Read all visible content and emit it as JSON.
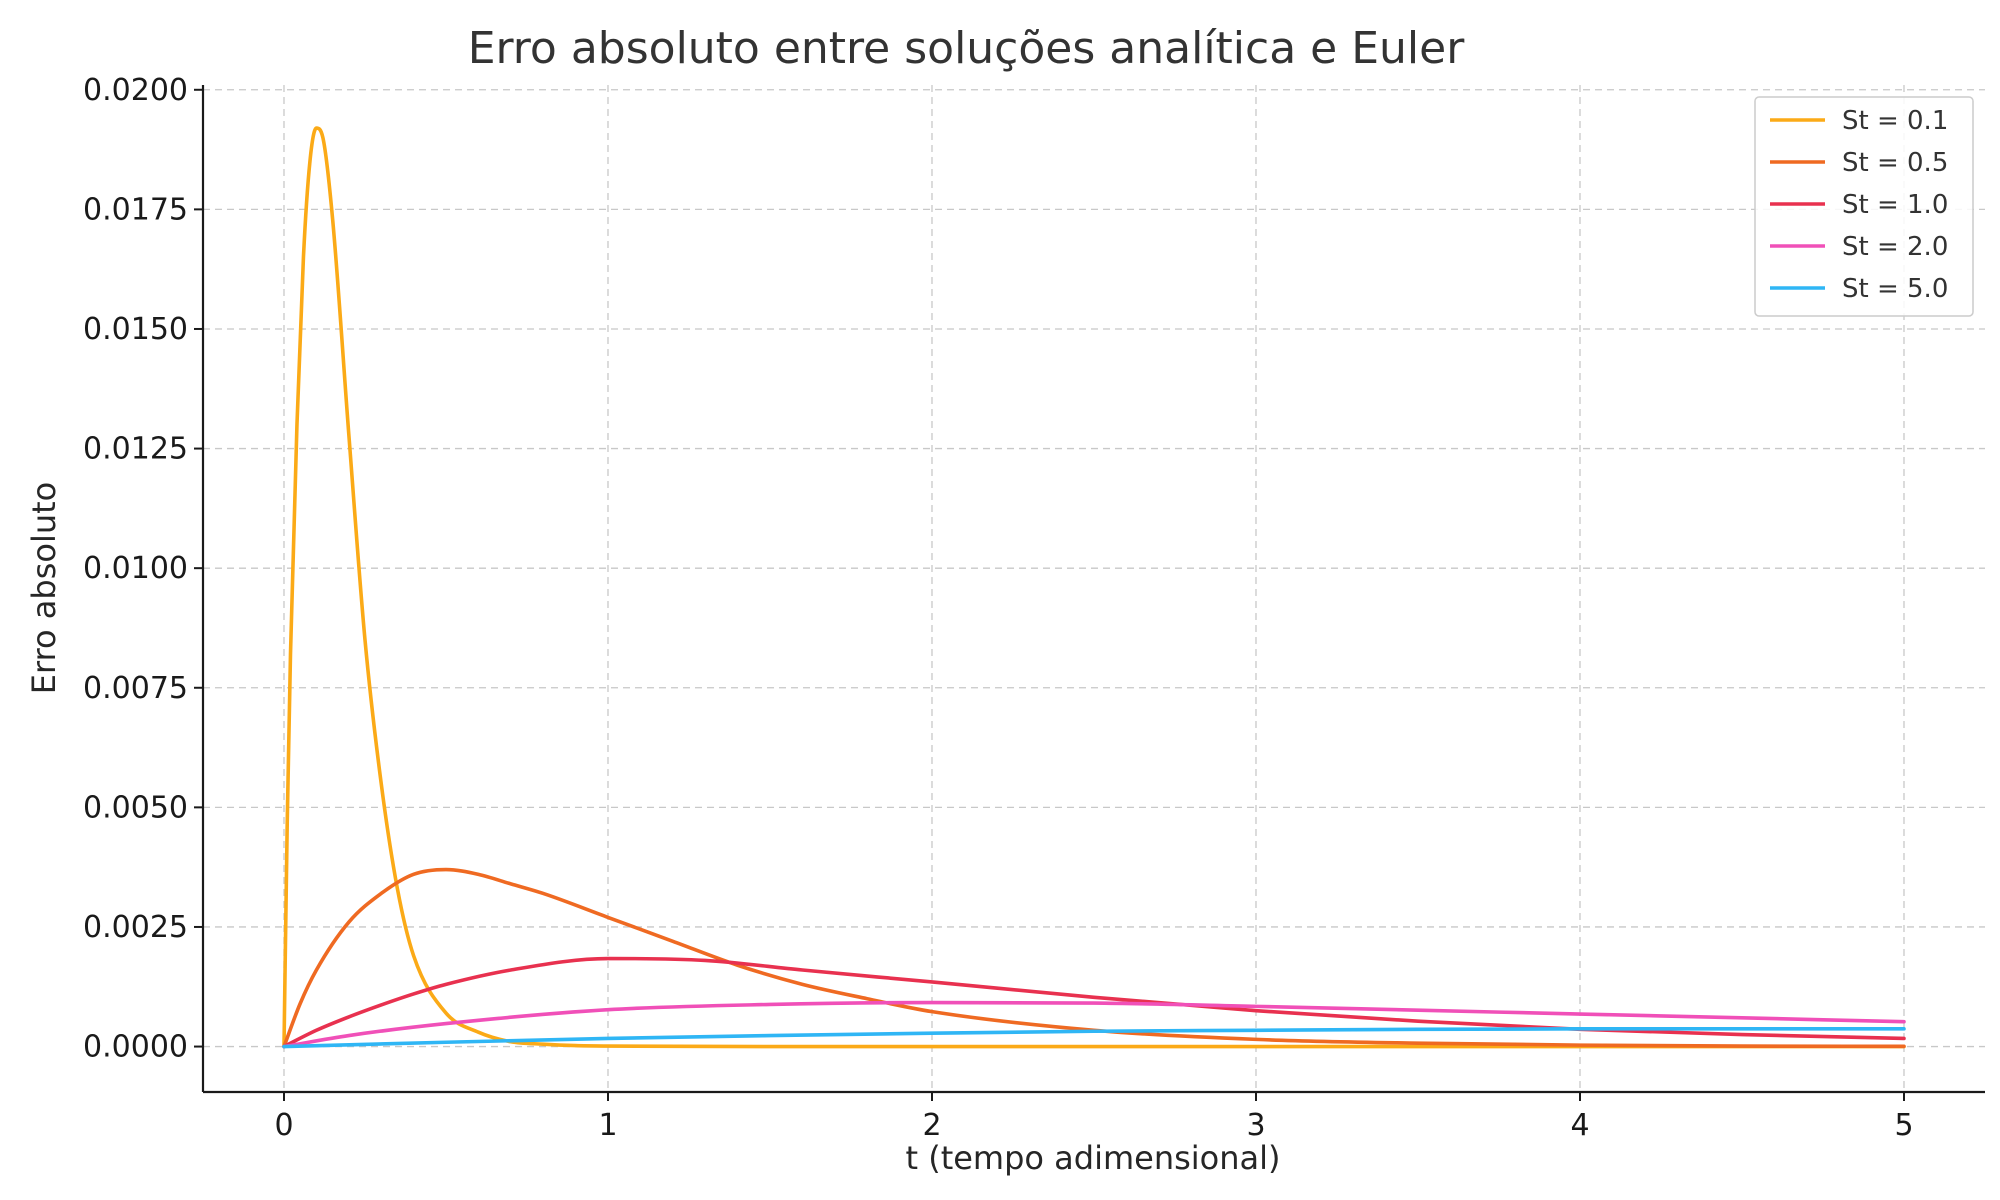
{
  "chart_data": {
    "type": "line",
    "title": "Erro absoluto entre soluções analítica e Euler",
    "xlabel": "t (tempo adimensional)",
    "ylabel": "Erro absoluto",
    "xlim": [
      -0.25,
      5.25
    ],
    "ylim": [
      -0.00095,
      0.0201
    ],
    "xticks": [
      0,
      1,
      2,
      3,
      4,
      5
    ],
    "xtick_labels": [
      "0",
      "1",
      "2",
      "3",
      "4",
      "5"
    ],
    "yticks": [
      0,
      0.0025,
      0.005,
      0.0075,
      0.01,
      0.0125,
      0.015,
      0.0175,
      0.02
    ],
    "ytick_labels": [
      "0.0000",
      "0.0025",
      "0.0050",
      "0.0075",
      "0.0100",
      "0.0125",
      "0.0150",
      "0.0175",
      "0.0200"
    ],
    "grid": true,
    "legend_position": "top-right",
    "series": [
      {
        "name": "St = 0.1",
        "color": "#FBAA17",
        "x": [
          0,
          0.01,
          0.02,
          0.04,
          0.06,
          0.08,
          0.1,
          0.12,
          0.15,
          0.2,
          0.25,
          0.3,
          0.35,
          0.4,
          0.5,
          0.6,
          0.7,
          0.8,
          0.9,
          1.0,
          1.5,
          2,
          3,
          4,
          5
        ],
        "values": [
          0,
          0.0047,
          0.0082,
          0.013,
          0.0165,
          0.0185,
          0.0192,
          0.019,
          0.0173,
          0.0128,
          0.0085,
          0.0055,
          0.0033,
          0.0019,
          0.0007,
          0.0003,
          0.0001,
          5e-05,
          2e-05,
          1e-05,
          0,
          0,
          0,
          0,
          0
        ]
      },
      {
        "name": "St = 0.5",
        "color": "#EF6A22",
        "x": [
          0,
          0.05,
          0.1,
          0.2,
          0.3,
          0.4,
          0.5,
          0.6,
          0.7,
          0.8,
          1.0,
          1.2,
          1.4,
          1.6,
          1.8,
          2.0,
          2.5,
          3.0,
          3.5,
          4.0,
          4.5,
          5.0
        ],
        "values": [
          0,
          0.0009,
          0.0016,
          0.0026,
          0.0032,
          0.0036,
          0.0037,
          0.0036,
          0.0034,
          0.0032,
          0.0027,
          0.0022,
          0.0017,
          0.0013,
          0.001,
          0.00073,
          0.00034,
          0.00015,
          7e-05,
          3e-05,
          1e-05,
          5e-06
        ]
      },
      {
        "name": "St = 1.0",
        "color": "#E8314F",
        "x": [
          0,
          0.1,
          0.2,
          0.3,
          0.4,
          0.5,
          0.7,
          1.0,
          1.3,
          1.6,
          2.0,
          2.5,
          3.0,
          3.5,
          4.0,
          4.5,
          5.0
        ],
        "values": [
          0,
          0.00034,
          0.00062,
          0.00087,
          0.0011,
          0.0013,
          0.0016,
          0.00184,
          0.0018,
          0.0016,
          0.00135,
          0.00103,
          0.00075,
          0.00053,
          0.00036,
          0.00025,
          0.00017
        ]
      },
      {
        "name": "St = 2.0",
        "color": "#F050B8",
        "x": [
          0,
          0.2,
          0.5,
          1.0,
          1.5,
          2.0,
          2.5,
          3.0,
          3.5,
          4.0,
          4.5,
          5.0
        ],
        "values": [
          0,
          0.00023,
          0.00048,
          0.00077,
          0.00088,
          0.00092,
          0.00091,
          0.00084,
          0.00076,
          0.00068,
          0.0006,
          0.00052
        ]
      },
      {
        "name": "St = 5.0",
        "color": "#2FB6F5",
        "x": [
          0,
          0.5,
          1.0,
          1.5,
          2.0,
          2.5,
          3.0,
          3.5,
          4.0,
          4.5,
          5.0
        ],
        "values": [
          0,
          9e-05,
          0.00017,
          0.00023,
          0.00028,
          0.00032,
          0.00034,
          0.00036,
          0.00037,
          0.00037,
          0.00037
        ]
      }
    ]
  }
}
